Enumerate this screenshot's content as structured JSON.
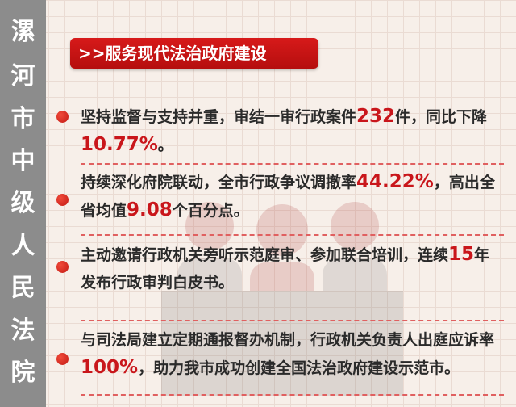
{
  "sidebar": {
    "chars": [
      "漯",
      "河",
      "市",
      "中",
      "级",
      "人",
      "民",
      "法",
      "院"
    ]
  },
  "banner": {
    "title": ">>服务现代法治政府建设"
  },
  "items": [
    {
      "parts": [
        "坚持监督与支持并重，审结一审行政案件",
        "232",
        "件，同比下降",
        "10.77%",
        "。"
      ]
    },
    {
      "parts": [
        "持续深化府院联动，全市行政争议调撤率",
        "44.22%",
        "，高出全省均值",
        "9.08",
        "个百分点。"
      ]
    },
    {
      "parts": [
        "主动邀请行政机关旁听示范庭审、参加联合培训，连续",
        "15",
        "年发布行政审判白皮书。"
      ]
    },
    {
      "parts": [
        "与司法局建立定期通报督办机制，行政机关负责人出庭应诉率",
        "100%",
        "，助力我市成功创建全国法治政府建设示范市。"
      ]
    }
  ],
  "colors": {
    "accent": "#c9161b",
    "sidebar": "#8c8c8c",
    "background": "#f7efe9"
  }
}
